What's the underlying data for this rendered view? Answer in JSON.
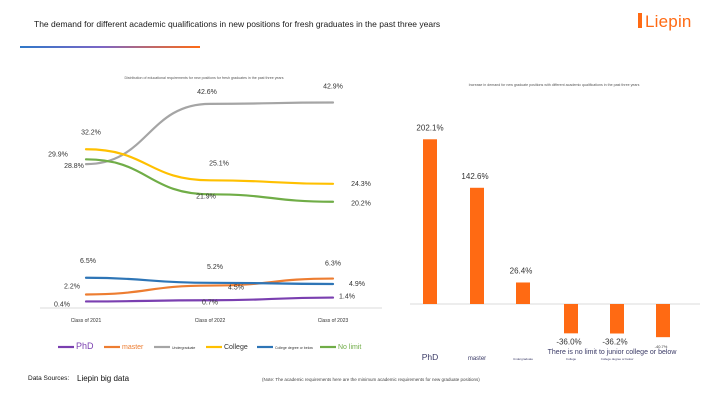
{
  "header": {
    "title": "The demand for different academic qualifications in new positions for fresh graduates in the past three years",
    "logo": "Liepin",
    "accent_color": "#ff6a13"
  },
  "footer": {
    "source_label": "Data Sources:",
    "source_value": "Liepin big data",
    "note": "(Note: The academic requirements here are the minimum academic requirements for new graduate positions)"
  },
  "chart_data": [
    {
      "type": "line",
      "title": "Distribution of educational requirements for new positions for fresh graduates in the past three years",
      "categories": [
        "Class of 2021",
        "Class of 2022",
        "Class of 2023"
      ],
      "series": [
        {
          "key": "phd",
          "color": "#7a3fb0",
          "values": [
            0.4,
            0.7,
            1.4
          ],
          "labels": [
            "0.4%",
            "0.7%",
            "1.4%"
          ]
        },
        {
          "key": "master",
          "color": "#ed7d31",
          "values": [
            2.2,
            4.5,
            6.3
          ],
          "labels": [
            "2.2%",
            "4.5%",
            "6.3%"
          ]
        },
        {
          "key": "undergraduate",
          "color": "#a5a5a5",
          "values": [
            28.8,
            42.6,
            42.9
          ],
          "labels": [
            "28.8%",
            "42.6%",
            "42.9%"
          ]
        },
        {
          "key": "college",
          "color": "#ffc000",
          "values": [
            32.2,
            25.1,
            24.3
          ],
          "labels": [
            "32.2%",
            "25.1%",
            "24.3%"
          ]
        },
        {
          "key": "college_below",
          "color": "#2e75b6",
          "values": [
            6.5,
            5.2,
            4.9
          ],
          "labels": [
            "6.5%",
            "5.2%",
            "4.9%"
          ]
        },
        {
          "key": "no_limit",
          "color": "#70ad47",
          "values": [
            29.9,
            21.9,
            20.2
          ],
          "labels": [
            "29.9%",
            "21.9%",
            "20.2%"
          ]
        }
      ],
      "legend": [
        {
          "key": "phd",
          "label": "PhD",
          "color": "#7a3fb0"
        },
        {
          "key": "master",
          "label": "master",
          "color": "#ed7d31"
        },
        {
          "key": "undergraduate",
          "label": "Undergraduate",
          "color": "#a5a5a5"
        },
        {
          "key": "college",
          "label": "College",
          "color": "#ffc000"
        },
        {
          "key": "college_below",
          "label": "College degree or below",
          "color": "#2e75b6"
        },
        {
          "key": "no_limit",
          "label": "No limit",
          "color": "#70ad47"
        }
      ]
    },
    {
      "type": "bar",
      "title": "Increase in demand for new graduate positions with different academic qualifications in the past three years",
      "color": "#ff6a13",
      "categories": [
        "PhD",
        "master",
        "Undergraduate",
        "College",
        "College degree or below",
        "There is no limit to junior college or below"
      ],
      "values": [
        202.1,
        142.6,
        26.4,
        -36.0,
        -36.2,
        -40.7
      ],
      "labels": [
        "202.1%",
        "142.6%",
        "26.4%",
        "-36.0%",
        "-36.2%",
        "-40.7%"
      ]
    }
  ]
}
